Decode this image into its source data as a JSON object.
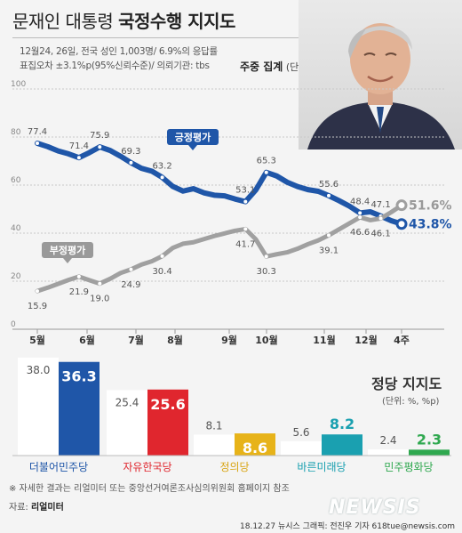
{
  "title": {
    "light": "문재인 대통령",
    "bold": "국정수행 지지도"
  },
  "info": {
    "line1": "12월24, 26일, 전국 성인 1,003명/ 6.9%의 응답률",
    "line2": "표집오차 ±3.1%p(95%신뢰수준)/ 의뢰기관: tbs",
    "unit_bold": "주중 집계",
    "unit_rest": "(단위: %)"
  },
  "chart_data": [
    {
      "type": "line",
      "ylim": [
        0,
        100
      ],
      "yticks": [
        "100",
        "80",
        "60",
        "40",
        "20",
        "0"
      ],
      "x_labels": [
        "5월",
        "6월",
        "7월",
        "8월",
        "9월",
        "10월",
        "11월",
        "12월",
        "4주"
      ],
      "series": [
        {
          "name": "긍정평가",
          "color": "#1f56a8",
          "values": [
            77.4,
            76.0,
            74.2,
            73.0,
            71.4,
            73.5,
            75.9,
            74.4,
            72.0,
            69.3,
            67.0,
            65.8,
            63.2,
            59.5,
            57.5,
            58.5,
            56.8,
            55.8,
            55.5,
            54.2,
            53.1,
            58.0,
            65.3,
            63.8,
            61.2,
            59.4,
            58.1,
            57.4,
            55.6,
            53.5,
            51.2,
            48.4,
            48.9,
            47.1,
            45.2,
            43.8
          ],
          "labels": [
            {
              "i": 0,
              "text": "77.4"
            },
            {
              "i": 4,
              "text": "71.4"
            },
            {
              "i": 6,
              "text": "75.9"
            },
            {
              "i": 9,
              "text": "69.3"
            },
            {
              "i": 12,
              "text": "63.2"
            },
            {
              "i": 20,
              "text": "53.1"
            },
            {
              "i": 22,
              "text": "65.3"
            },
            {
              "i": 28,
              "text": "55.6"
            },
            {
              "i": 31,
              "text": "48.4"
            },
            {
              "i": 33,
              "text": "47.1"
            },
            {
              "i": 35,
              "text": "43.8"
            }
          ]
        },
        {
          "name": "부정평가",
          "color": "#a0a0a0",
          "values": [
            15.9,
            17.3,
            18.9,
            20.5,
            21.9,
            20.4,
            19.0,
            21.0,
            23.4,
            24.9,
            26.9,
            28.3,
            30.4,
            33.8,
            35.6,
            36.2,
            37.5,
            38.8,
            39.9,
            41.0,
            41.7,
            37.4,
            30.3,
            31.2,
            32.0,
            33.5,
            35.4,
            37.0,
            39.1,
            41.6,
            44.1,
            46.6,
            45.4,
            46.1,
            48.7,
            51.6
          ],
          "labels": [
            {
              "i": 0,
              "text": "15.9"
            },
            {
              "i": 4,
              "text": "21.9"
            },
            {
              "i": 6,
              "text": "19.0"
            },
            {
              "i": 9,
              "text": "24.9"
            },
            {
              "i": 12,
              "text": "30.4"
            },
            {
              "i": 20,
              "text": "41.7"
            },
            {
              "i": 22,
              "text": "30.3"
            },
            {
              "i": 28,
              "text": "39.1"
            },
            {
              "i": 31,
              "text": "46.6"
            },
            {
              "i": 33,
              "text": "46.1"
            },
            {
              "i": 35,
              "text": "51.6"
            }
          ]
        }
      ]
    },
    {
      "type": "bar",
      "title": "정당 지지도",
      "unit": "(단위: %, %p)",
      "categories": [
        "더불어민주당",
        "자유한국당",
        "정의당",
        "바른미래당",
        "민주평화당"
      ],
      "series": [
        {
          "values": [
            38.0,
            25.4,
            8.1,
            5.6,
            2.4
          ],
          "color": "#ffffff"
        },
        {
          "values": [
            36.3,
            25.6,
            8.6,
            8.2,
            2.3
          ],
          "colors": [
            "#1f56a8",
            "#e0262e",
            "#e7b319",
            "#1aa0b0",
            "#2fa84f"
          ]
        }
      ],
      "labels_prev": [
        "38.0",
        "25.4",
        "8.1",
        "5.6",
        "2.4"
      ],
      "labels_now": [
        "36.3",
        "25.6",
        "8.6",
        "8.2",
        "2.3"
      ],
      "category_colors": [
        "#1f56a8",
        "#e0262e",
        "#d9a514",
        "#1aa0b0",
        "#2fa84f"
      ]
    }
  ],
  "notes": {
    "detail": "※ 자세한 결과는 리얼미터 또는 중앙선거여론조사심의위원회 홈페이지 참조",
    "source_label": "자료:",
    "source": "리얼미터"
  },
  "footer": "18.12.27  뉴시스 그래픽: 전진우 기자 618tue@newsis.com",
  "watermark": "NEWSIS"
}
